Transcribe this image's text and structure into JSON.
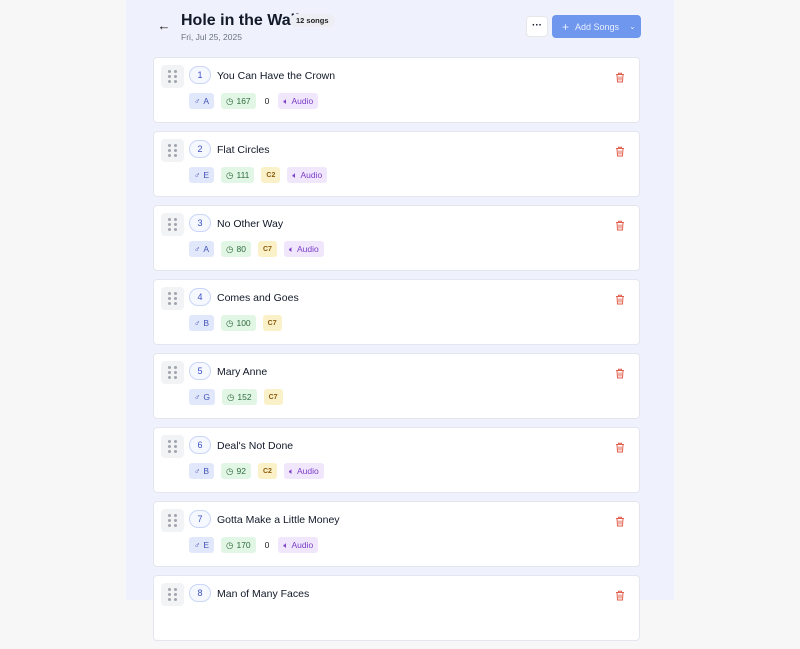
{
  "header": {
    "title": "Hole in the Wall",
    "song_count": "12 songs",
    "date": "Fri, Jul 25, 2025",
    "more_label": "···",
    "add_label": "Add Songs"
  },
  "songs": [
    {
      "num": "1",
      "name": "You Can Have the Crown",
      "key": "A",
      "bpm": "167",
      "capo": "0",
      "capo_badge": false,
      "audio": "Audio"
    },
    {
      "num": "2",
      "name": "Flat Circles",
      "key": "E",
      "bpm": "111",
      "capo": "C2",
      "capo_badge": true,
      "audio": "Audio"
    },
    {
      "num": "3",
      "name": "No Other Way",
      "key": "A",
      "bpm": "80",
      "capo": "C7",
      "capo_badge": true,
      "audio": "Audio"
    },
    {
      "num": "4",
      "name": "Comes and Goes",
      "key": "B",
      "bpm": "100",
      "capo": "C7",
      "capo_badge": true,
      "audio": null
    },
    {
      "num": "5",
      "name": "Mary Anne",
      "key": "G",
      "bpm": "152",
      "capo": "C7",
      "capo_badge": true,
      "audio": null
    },
    {
      "num": "6",
      "name": "Deal's Not Done",
      "key": "B",
      "bpm": "92",
      "capo": "C2",
      "capo_badge": true,
      "audio": "Audio"
    },
    {
      "num": "7",
      "name": "Gotta Make a Little Money",
      "key": "E",
      "bpm": "170",
      "capo": "0",
      "capo_badge": false,
      "audio": "Audio"
    },
    {
      "num": "8",
      "name": "Man of Many Faces",
      "key": "",
      "bpm": "",
      "capo": "",
      "capo_badge": false,
      "audio": null
    }
  ],
  "colors": {
    "accent": "#6f97ee",
    "delete": "#e0604e",
    "audio": "#7a3dc7"
  }
}
